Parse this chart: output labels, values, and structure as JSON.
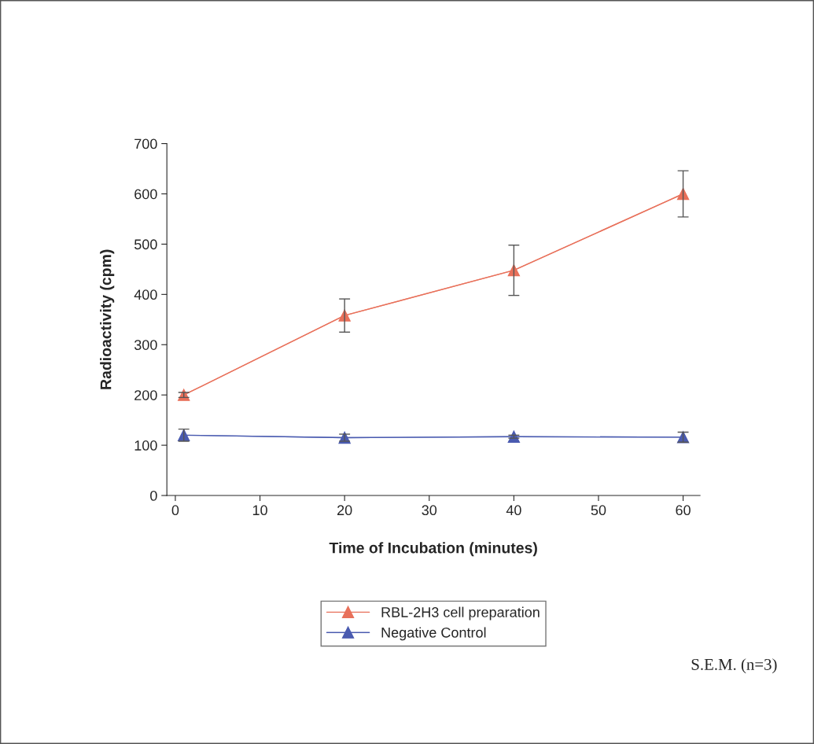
{
  "chart_data": {
    "type": "line",
    "xlabel": "Time of Incubation (minutes)",
    "ylabel": "Radioactivity (cpm)",
    "x": [
      1,
      20,
      40,
      60
    ],
    "series": [
      {
        "name": "RBL-2H3 cell preparation",
        "color": "#e8705a",
        "values": [
          200,
          358,
          448,
          600
        ],
        "errors": [
          5,
          33,
          50,
          46
        ]
      },
      {
        "name": "Negative Control",
        "color": "#4a5bb0",
        "values": [
          120,
          115,
          117,
          116
        ],
        "errors": [
          12,
          7,
          3,
          10
        ]
      }
    ],
    "xlim": [
      -1,
      62
    ],
    "xticks": [
      0,
      10,
      20,
      30,
      40,
      50,
      60
    ],
    "ylim": [
      0,
      700
    ],
    "yticks": [
      0,
      100,
      200,
      300,
      400,
      500,
      600,
      700
    ],
    "marker": "triangle",
    "line_style": "solid",
    "grid": false,
    "legend": "bottom",
    "annotations": [
      "S.E.M. (n=3)"
    ]
  }
}
